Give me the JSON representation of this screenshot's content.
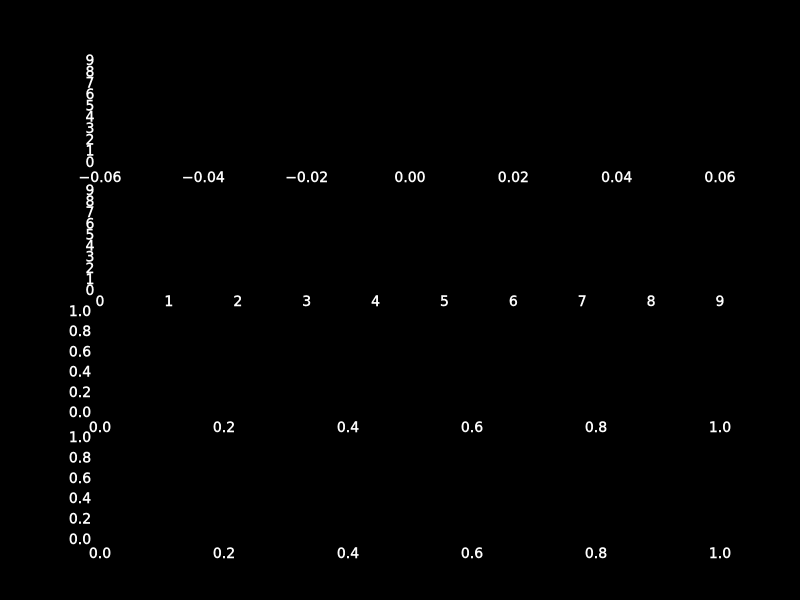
{
  "style": {
    "background": "#000000",
    "text_color": "#ffffff"
  },
  "chart_data": [
    {
      "type": "line",
      "series": [],
      "title": "",
      "xlabel": "",
      "ylabel": "",
      "x_ticks": [
        "−0.06",
        "−0.04",
        "−0.02",
        "0.00",
        "0.02",
        "0.04",
        "0.06"
      ],
      "y_ticks": [
        "0",
        "1",
        "2",
        "3",
        "4",
        "5",
        "6",
        "7",
        "8",
        "9"
      ],
      "xlim": [
        -0.06,
        0.06
      ],
      "ylim": [
        0,
        9
      ],
      "grid": false,
      "legend": "none"
    },
    {
      "type": "line",
      "series": [],
      "title": "",
      "xlabel": "",
      "ylabel": "",
      "x_ticks": [
        "0",
        "1",
        "2",
        "3",
        "4",
        "5",
        "6",
        "7",
        "8",
        "9"
      ],
      "y_ticks": [
        "0",
        "1",
        "2",
        "3",
        "4",
        "5",
        "6",
        "7",
        "8",
        "9"
      ],
      "xlim": [
        0,
        9
      ],
      "ylim": [
        0,
        9
      ],
      "grid": false,
      "legend": "none"
    },
    {
      "type": "line",
      "series": [],
      "title": "",
      "xlabel": "",
      "ylabel": "",
      "x_ticks": [
        "0.0",
        "0.2",
        "0.4",
        "0.6",
        "0.8",
        "1.0"
      ],
      "y_ticks": [
        "0.0",
        "0.2",
        "0.4",
        "0.6",
        "0.8",
        "1.0"
      ],
      "xlim": [
        0,
        1
      ],
      "ylim": [
        0,
        1
      ],
      "grid": false,
      "legend": "none"
    },
    {
      "type": "line",
      "series": [],
      "title": "",
      "xlabel": "",
      "ylabel": "",
      "x_ticks": [
        "0.0",
        "0.2",
        "0.4",
        "0.6",
        "0.8",
        "1.0"
      ],
      "y_ticks": [
        "0.0",
        "0.2",
        "0.4",
        "0.6",
        "0.8",
        "1.0"
      ],
      "xlim": [
        0,
        1
      ],
      "ylim": [
        0,
        1
      ],
      "grid": false,
      "legend": "none"
    }
  ]
}
